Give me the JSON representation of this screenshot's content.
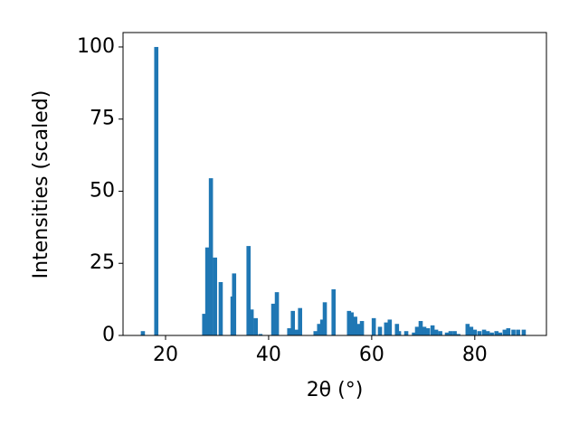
{
  "chart_data": {
    "type": "bar",
    "x_label": "2θ (°)",
    "y_label": "Intensities (scaled)",
    "x": [
      15.6,
      18.2,
      27.5,
      28.1,
      28.8,
      29.6,
      30.7,
      33.0,
      33.3,
      36.1,
      36.7,
      37.5,
      38.4,
      40.9,
      41.6,
      44.0,
      44.7,
      45.4,
      46.1,
      49.1,
      49.8,
      50.4,
      50.9,
      52.6,
      55.6,
      56.1,
      56.8,
      57.4,
      58.1,
      60.4,
      61.6,
      62.8,
      63.5,
      64.9,
      65.3,
      66.7,
      68.2,
      68.8,
      69.5,
      70.2,
      70.9,
      71.8,
      72.5,
      73.3,
      74.6,
      75.3,
      76.1,
      76.8,
      78.6,
      79.3,
      80.0,
      80.9,
      81.8,
      82.5,
      83.3,
      84.2,
      84.9,
      85.8,
      86.5,
      87.5,
      88.4,
      89.5
    ],
    "values": [
      1.5,
      100,
      7.5,
      30.5,
      54.5,
      27,
      18.5,
      13.5,
      21.5,
      31,
      9,
      6,
      0.5,
      11,
      15,
      2.5,
      8.5,
      2,
      9.5,
      1.5,
      4,
      5.5,
      11.5,
      16,
      8.5,
      8,
      6.5,
      4,
      5,
      6,
      3,
      4.5,
      5.5,
      4,
      1.5,
      1.5,
      1,
      3,
      5,
      3,
      2.5,
      3.5,
      2,
      1.5,
      1,
      1.5,
      1.5,
      0.5,
      4,
      3,
      2,
      1.5,
      2,
      1.5,
      1,
      1.5,
      1,
      2,
      2.5,
      2,
      2,
      2
    ],
    "color": "#1f77b4",
    "xlim": [
      11.75,
      93.9
    ],
    "xticks": [
      20,
      40,
      60,
      80
    ],
    "ylim": [
      0,
      105
    ],
    "yticks": [
      0,
      25,
      50,
      75,
      100
    ],
    "grid": false
  }
}
